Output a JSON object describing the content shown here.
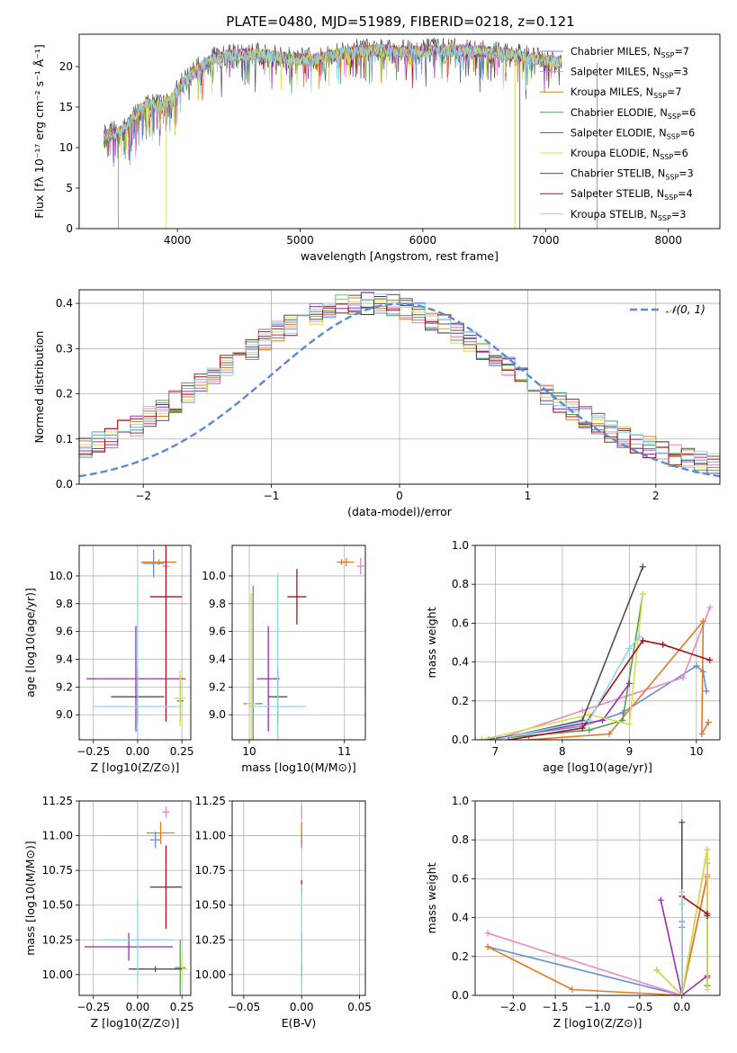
{
  "figure": {
    "title": "PLATE=0480, MJD=51989, FIBERID=0218, z=0.121"
  },
  "colors": {
    "series": [
      "#6a8fd6",
      "#e889c4",
      "#e07b21",
      "#5a9a5a",
      "#9b2fae",
      "#d9dc4a",
      "#505050",
      "#a6141a",
      "#8fd6e6"
    ]
  },
  "chart_data": [
    {
      "id": "spectrum",
      "type": "line",
      "title": "PLATE=0480, MJD=51989, FIBERID=0218, z=0.121",
      "xlabel": "wavelength [Angstrom, rest frame]",
      "ylabel": "Flux [fλ 10⁻¹⁷ erg cm⁻² s⁻¹ Å⁻¹]",
      "xlim": [
        3200,
        8420
      ],
      "ylim": [
        0,
        24
      ],
      "xticks": [
        4000,
        5000,
        6000,
        7000,
        8000
      ],
      "yticks": [
        0,
        5,
        10,
        15,
        20
      ],
      "grid": false,
      "legend": "top-right",
      "continuum": {
        "x": [
          3400,
          3550,
          3650,
          3750,
          3850,
          3950,
          4050,
          4150,
          4300,
          4500,
          4700,
          4900,
          5100,
          5300,
          5500,
          5700,
          5900,
          6100,
          6300,
          6500,
          6700,
          6900,
          7100
        ],
        "y": [
          11.5,
          12.0,
          14.0,
          15.5,
          15.0,
          16.0,
          18.0,
          19.5,
          21.0,
          21.5,
          21.5,
          21.0,
          20.8,
          21.5,
          22.0,
          22.0,
          21.8,
          22.0,
          22.0,
          21.8,
          21.5,
          21.0,
          20.5
        ]
      },
      "series": [
        {
          "name": "Chabrier MILES, N_SSP=7",
          "label": "Chabrier MILES, N",
          "n": "7"
        },
        {
          "name": "Salpeter MILES, N_SSP=3",
          "label": "Salpeter MILES, N",
          "n": "3"
        },
        {
          "name": "Kroupa MILES, N_SSP=7",
          "label": "Kroupa MILES, N",
          "n": "7"
        },
        {
          "name": "Chabrier ELODIE, N_SSP=6",
          "label": "Chabrier ELODIE, N",
          "n": "6"
        },
        {
          "name": "Salpeter ELODIE, N_SSP=6",
          "label": "Salpeter ELODIE, N",
          "n": "6"
        },
        {
          "name": "Kroupa ELODIE, N_SSP=6",
          "label": "Kroupa ELODIE, N",
          "n": "6"
        },
        {
          "name": "Chabrier STELIB, N_SSP=3",
          "label": "Chabrier STELIB, N",
          "n": "3"
        },
        {
          "name": "Salpeter STELIB, N_SSP=4",
          "label": "Salpeter STELIB, N",
          "n": "4"
        },
        {
          "name": "Kroupa STELIB, N_SSP=3",
          "label": "Kroupa STELIB, N",
          "n": "3"
        }
      ],
      "legend_subscript": "SSP",
      "spikes": [
        {
          "x": 3520,
          "series": 2
        },
        {
          "x": 3910,
          "series": 5
        },
        {
          "x": 6750,
          "series": 5
        },
        {
          "x": 6790,
          "series": 4
        },
        {
          "x": 7420,
          "series": 2
        }
      ]
    },
    {
      "id": "residuals",
      "type": "bar",
      "xlabel": "(data-model)/error",
      "ylabel": "Normed distribution",
      "xlim": [
        -2.5,
        2.5
      ],
      "ylim": [
        0,
        0.43
      ],
      "xticks": [
        -2,
        -1,
        0,
        1,
        2
      ],
      "yticks": [
        0.0,
        0.1,
        0.2,
        0.3,
        0.4
      ],
      "grid": true,
      "legend": "top-right",
      "reference": {
        "name": "𝒩(0, 1)",
        "mean": 0,
        "sigma": 1
      }
    },
    {
      "id": "age-vs-Z",
      "type": "scatter",
      "xlabel": "Z [log10(Z/Z⊙)]",
      "ylabel": "age [log10(age/yr)]",
      "xlim": [
        -0.33,
        0.3
      ],
      "ylim": [
        8.82,
        10.22
      ],
      "xticks": [
        -0.25,
        0.0,
        0.25
      ],
      "yticks": [
        9.0,
        9.2,
        9.4,
        9.6,
        9.8,
        10.0
      ],
      "grid": true,
      "points": [
        {
          "x": 0.09,
          "y": 10.09,
          "xerr": 0.06,
          "yerr": 0.1,
          "series": 0
        },
        {
          "x": 0.16,
          "y": 10.07,
          "xerr": 0.02,
          "yerr": 0.03,
          "series": 1
        },
        {
          "x": 0.12,
          "y": 10.1,
          "xerr": 0.1,
          "yerr": 0.02,
          "series": 2
        },
        {
          "x": 0.24,
          "y": 9.1,
          "xerr": 0.02,
          "yerr": 0.15,
          "series": 3
        },
        {
          "x": -0.01,
          "y": 9.26,
          "xerr": 0.28,
          "yerr": 0.38,
          "series": 4
        },
        {
          "x": 0.24,
          "y": 9.12,
          "xerr": 0.03,
          "yerr": 0.2,
          "series": 5
        },
        {
          "x": 0.0,
          "y": 9.13,
          "xerr": 0.15,
          "yerr": 0.2,
          "series": 6
        },
        {
          "x": 0.16,
          "y": 9.85,
          "xerr": 0.09,
          "yerr": 0.9,
          "series": 7
        },
        {
          "x": 0.0,
          "y": 9.06,
          "xerr": 0.25,
          "yerr": 0.95,
          "series": 8
        }
      ]
    },
    {
      "id": "age-vs-mass",
      "type": "scatter",
      "xlabel": "mass [log10(M/M⊙)]",
      "xlim": [
        9.82,
        11.22
      ],
      "ylim": [
        8.82,
        10.22
      ],
      "xticks": [
        10,
        11
      ],
      "yticks": [
        9.0,
        9.2,
        9.4,
        9.6,
        9.8,
        10.0
      ],
      "grid": true,
      "points": [
        {
          "x": 10.97,
          "y": 10.1,
          "xerr": 0.05,
          "yerr": 0.02,
          "series": 0
        },
        {
          "x": 11.17,
          "y": 10.07,
          "xerr": 0.04,
          "yerr": 0.06,
          "series": 1
        },
        {
          "x": 11.02,
          "y": 10.1,
          "xerr": 0.08,
          "yerr": 0.03,
          "series": 2
        },
        {
          "x": 10.04,
          "y": 9.08,
          "xerr": 0.1,
          "yerr": 0.85,
          "series": 3
        },
        {
          "x": 10.2,
          "y": 9.26,
          "xerr": 0.12,
          "yerr": 0.38,
          "series": 4
        },
        {
          "x": 10.02,
          "y": 9.08,
          "xerr": 0.05,
          "yerr": 0.8,
          "series": 5
        },
        {
          "x": 10.3,
          "y": 9.13,
          "xerr": 0.1,
          "yerr": 0.2,
          "series": 6
        },
        {
          "x": 10.5,
          "y": 9.85,
          "xerr": 0.1,
          "yerr": 0.2,
          "series": 7
        },
        {
          "x": 10.3,
          "y": 9.06,
          "xerr": 0.3,
          "yerr": 0.96,
          "series": 8
        }
      ]
    },
    {
      "id": "weight-vs-age",
      "type": "line",
      "xlabel": "age [log10(age/yr)]",
      "ylabel": "mass weight",
      "xlim": [
        6.7,
        10.35
      ],
      "ylim": [
        0,
        1
      ],
      "xticks": [
        7,
        8,
        9,
        10
      ],
      "yticks": [
        0.0,
        0.2,
        0.4,
        0.6,
        0.8,
        1.0
      ],
      "grid": true,
      "series": [
        {
          "x": [
            6.8,
            8.3,
            8.9,
            10.0,
            10.1,
            10.15
          ],
          "y": [
            0.0,
            0.07,
            0.14,
            0.38,
            0.35,
            0.25
          ],
          "series": 0
        },
        {
          "x": [
            7.0,
            8.3,
            9.8,
            10.2
          ],
          "y": [
            0.0,
            0.15,
            0.32,
            0.68
          ],
          "series": 1
        },
        {
          "x": [
            7.5,
            8.7,
            10.1,
            10.08,
            10.18
          ],
          "y": [
            0.0,
            0.03,
            0.61,
            0.03,
            0.09
          ],
          "series": 2
        },
        {
          "x": [
            6.8,
            8.4,
            8.9,
            9.2
          ],
          "y": [
            0.0,
            0.05,
            0.1,
            0.75
          ],
          "series": 3
        },
        {
          "x": [
            6.9,
            8.6,
            9.0
          ],
          "y": [
            0.0,
            0.1,
            0.29
          ],
          "series": 4
        },
        {
          "x": [
            6.8,
            8.4,
            9.0,
            9.2
          ],
          "y": [
            0.0,
            0.13,
            0.08,
            0.75
          ],
          "series": 5
        },
        {
          "x": [
            7.0,
            8.3,
            9.2
          ],
          "y": [
            0.0,
            0.1,
            0.89
          ],
          "series": 6
        },
        {
          "x": [
            7.2,
            8.3,
            9.2,
            9.5,
            10.2
          ],
          "y": [
            0.0,
            0.06,
            0.51,
            0.49,
            0.41
          ],
          "series": 7
        },
        {
          "x": [
            7.0,
            8.4,
            9.0,
            9.15
          ],
          "y": [
            0.0,
            0.1,
            0.47,
            0.53
          ],
          "series": 8
        }
      ]
    },
    {
      "id": "mass-vs-Z",
      "type": "scatter",
      "xlabel": "Z [log10(Z/Z⊙)]",
      "ylabel": "mass [log10(M/M⊙)]",
      "xlim": [
        -0.33,
        0.3
      ],
      "ylim": [
        9.85,
        11.25
      ],
      "xticks": [
        -0.25,
        0.0,
        0.25
      ],
      "yticks": [
        10.0,
        10.25,
        10.5,
        10.75,
        11.0,
        11.25
      ],
      "grid": true,
      "points": [
        {
          "x": 0.1,
          "y": 10.97,
          "xerr": 0.03,
          "yerr": 0.06,
          "series": 0
        },
        {
          "x": 0.16,
          "y": 11.17,
          "xerr": 0.02,
          "yerr": 0.04,
          "series": 1
        },
        {
          "x": 0.13,
          "y": 11.02,
          "xerr": 0.08,
          "yerr": 0.08,
          "series": 2
        },
        {
          "x": 0.24,
          "y": 10.05,
          "xerr": 0.03,
          "yerr": 0.2,
          "series": 3
        },
        {
          "x": -0.05,
          "y": 10.2,
          "xerr": 0.25,
          "yerr": 0.1,
          "series": 4
        },
        {
          "x": 0.25,
          "y": 10.04,
          "xerr": 0.03,
          "yerr": 0.1,
          "series": 5
        },
        {
          "x": 0.1,
          "y": 10.04,
          "xerr": 0.15,
          "yerr": 0.02,
          "series": 6
        },
        {
          "x": 0.16,
          "y": 10.63,
          "xerr": 0.09,
          "yerr": 0.3,
          "series": 7
        },
        {
          "x": 0.0,
          "y": 10.25,
          "xerr": 0.2,
          "yerr": 0.3,
          "series": 8
        }
      ]
    },
    {
      "id": "mass-vs-ebv",
      "type": "scatter",
      "xlabel": "E(B-V)",
      "xlim": [
        -0.06,
        0.055
      ],
      "ylim": [
        9.85,
        11.25
      ],
      "xticks": [
        -0.05,
        0.0,
        0.05
      ],
      "yticks": [
        10.0,
        10.25,
        10.5,
        10.75,
        11.0,
        11.25
      ],
      "grid": true,
      "points": [
        {
          "x": 0.0,
          "y": 10.97,
          "xerr": 0,
          "yerr": 0.06,
          "series": 0
        },
        {
          "x": 0.0,
          "y": 11.17,
          "xerr": 0,
          "yerr": 0.05,
          "series": 1
        },
        {
          "x": 0.0,
          "y": 11.02,
          "xerr": 0,
          "yerr": 0.08,
          "series": 2
        },
        {
          "x": 0.0,
          "y": 10.05,
          "xerr": 0,
          "yerr": 0.1,
          "series": 3
        },
        {
          "x": 0.0,
          "y": 10.2,
          "xerr": 0,
          "yerr": 0.1,
          "series": 4
        },
        {
          "x": 0.0,
          "y": 10.04,
          "xerr": 0,
          "yerr": 0.1,
          "series": 5
        },
        {
          "x": 0.0,
          "y": 10.04,
          "xerr": 0,
          "yerr": 0.05,
          "series": 6
        },
        {
          "x": 0.0,
          "y": 10.63,
          "xerr": 0,
          "yerr": 0.05,
          "series": 7
        },
        {
          "x": 0.0,
          "y": 10.25,
          "xerr": 0,
          "yerr": 0.4,
          "series": 8
        }
      ]
    },
    {
      "id": "weight-vs-Z",
      "type": "line",
      "xlabel": "Z [log10(Z/Z⊙)]",
      "ylabel": "mass weight",
      "xlim": [
        -2.45,
        0.45
      ],
      "ylim": [
        0,
        1
      ],
      "xticks": [
        -2.0,
        -1.5,
        -1.0,
        -0.5,
        0.0
      ],
      "yticks": [
        0.0,
        0.2,
        0.4,
        0.6,
        0.8,
        1.0
      ],
      "grid": true,
      "series": [
        {
          "x": [
            -2.3,
            0.0,
            0.0,
            0.0
          ],
          "y": [
            0.25,
            0.0,
            0.35,
            0.38
          ],
          "series": 0
        },
        {
          "x": [
            -2.3,
            0.0,
            0.3,
            0.3
          ],
          "y": [
            0.32,
            0.0,
            0.62,
            0.68
          ],
          "series": 1
        },
        {
          "x": [
            -2.3,
            -1.3,
            0.0,
            0.3,
            0.3
          ],
          "y": [
            0.25,
            0.03,
            0.0,
            0.61,
            0.09
          ],
          "series": 2
        },
        {
          "x": [
            -0.3,
            0.0,
            0.3,
            0.3
          ],
          "y": [
            0.13,
            0.0,
            0.75,
            0.05
          ],
          "series": 3
        },
        {
          "x": [
            -0.25,
            0.0,
            0.3
          ],
          "y": [
            0.49,
            0.0,
            0.1
          ],
          "series": 4
        },
        {
          "x": [
            -0.3,
            0.0,
            0.3,
            0.3,
            0.3
          ],
          "y": [
            0.13,
            0.0,
            0.75,
            0.7,
            0.03
          ],
          "series": 5
        },
        {
          "x": [
            0.0,
            0.0
          ],
          "y": [
            0.0,
            0.89
          ],
          "series": 6
        },
        {
          "x": [
            0.0,
            0.0,
            0.3,
            0.3
          ],
          "y": [
            0.0,
            0.51,
            0.42,
            0.41
          ],
          "series": 7
        },
        {
          "x": [
            0.0,
            0.0,
            0.0
          ],
          "y": [
            0.0,
            0.47,
            0.53
          ],
          "series": 8
        }
      ]
    }
  ]
}
